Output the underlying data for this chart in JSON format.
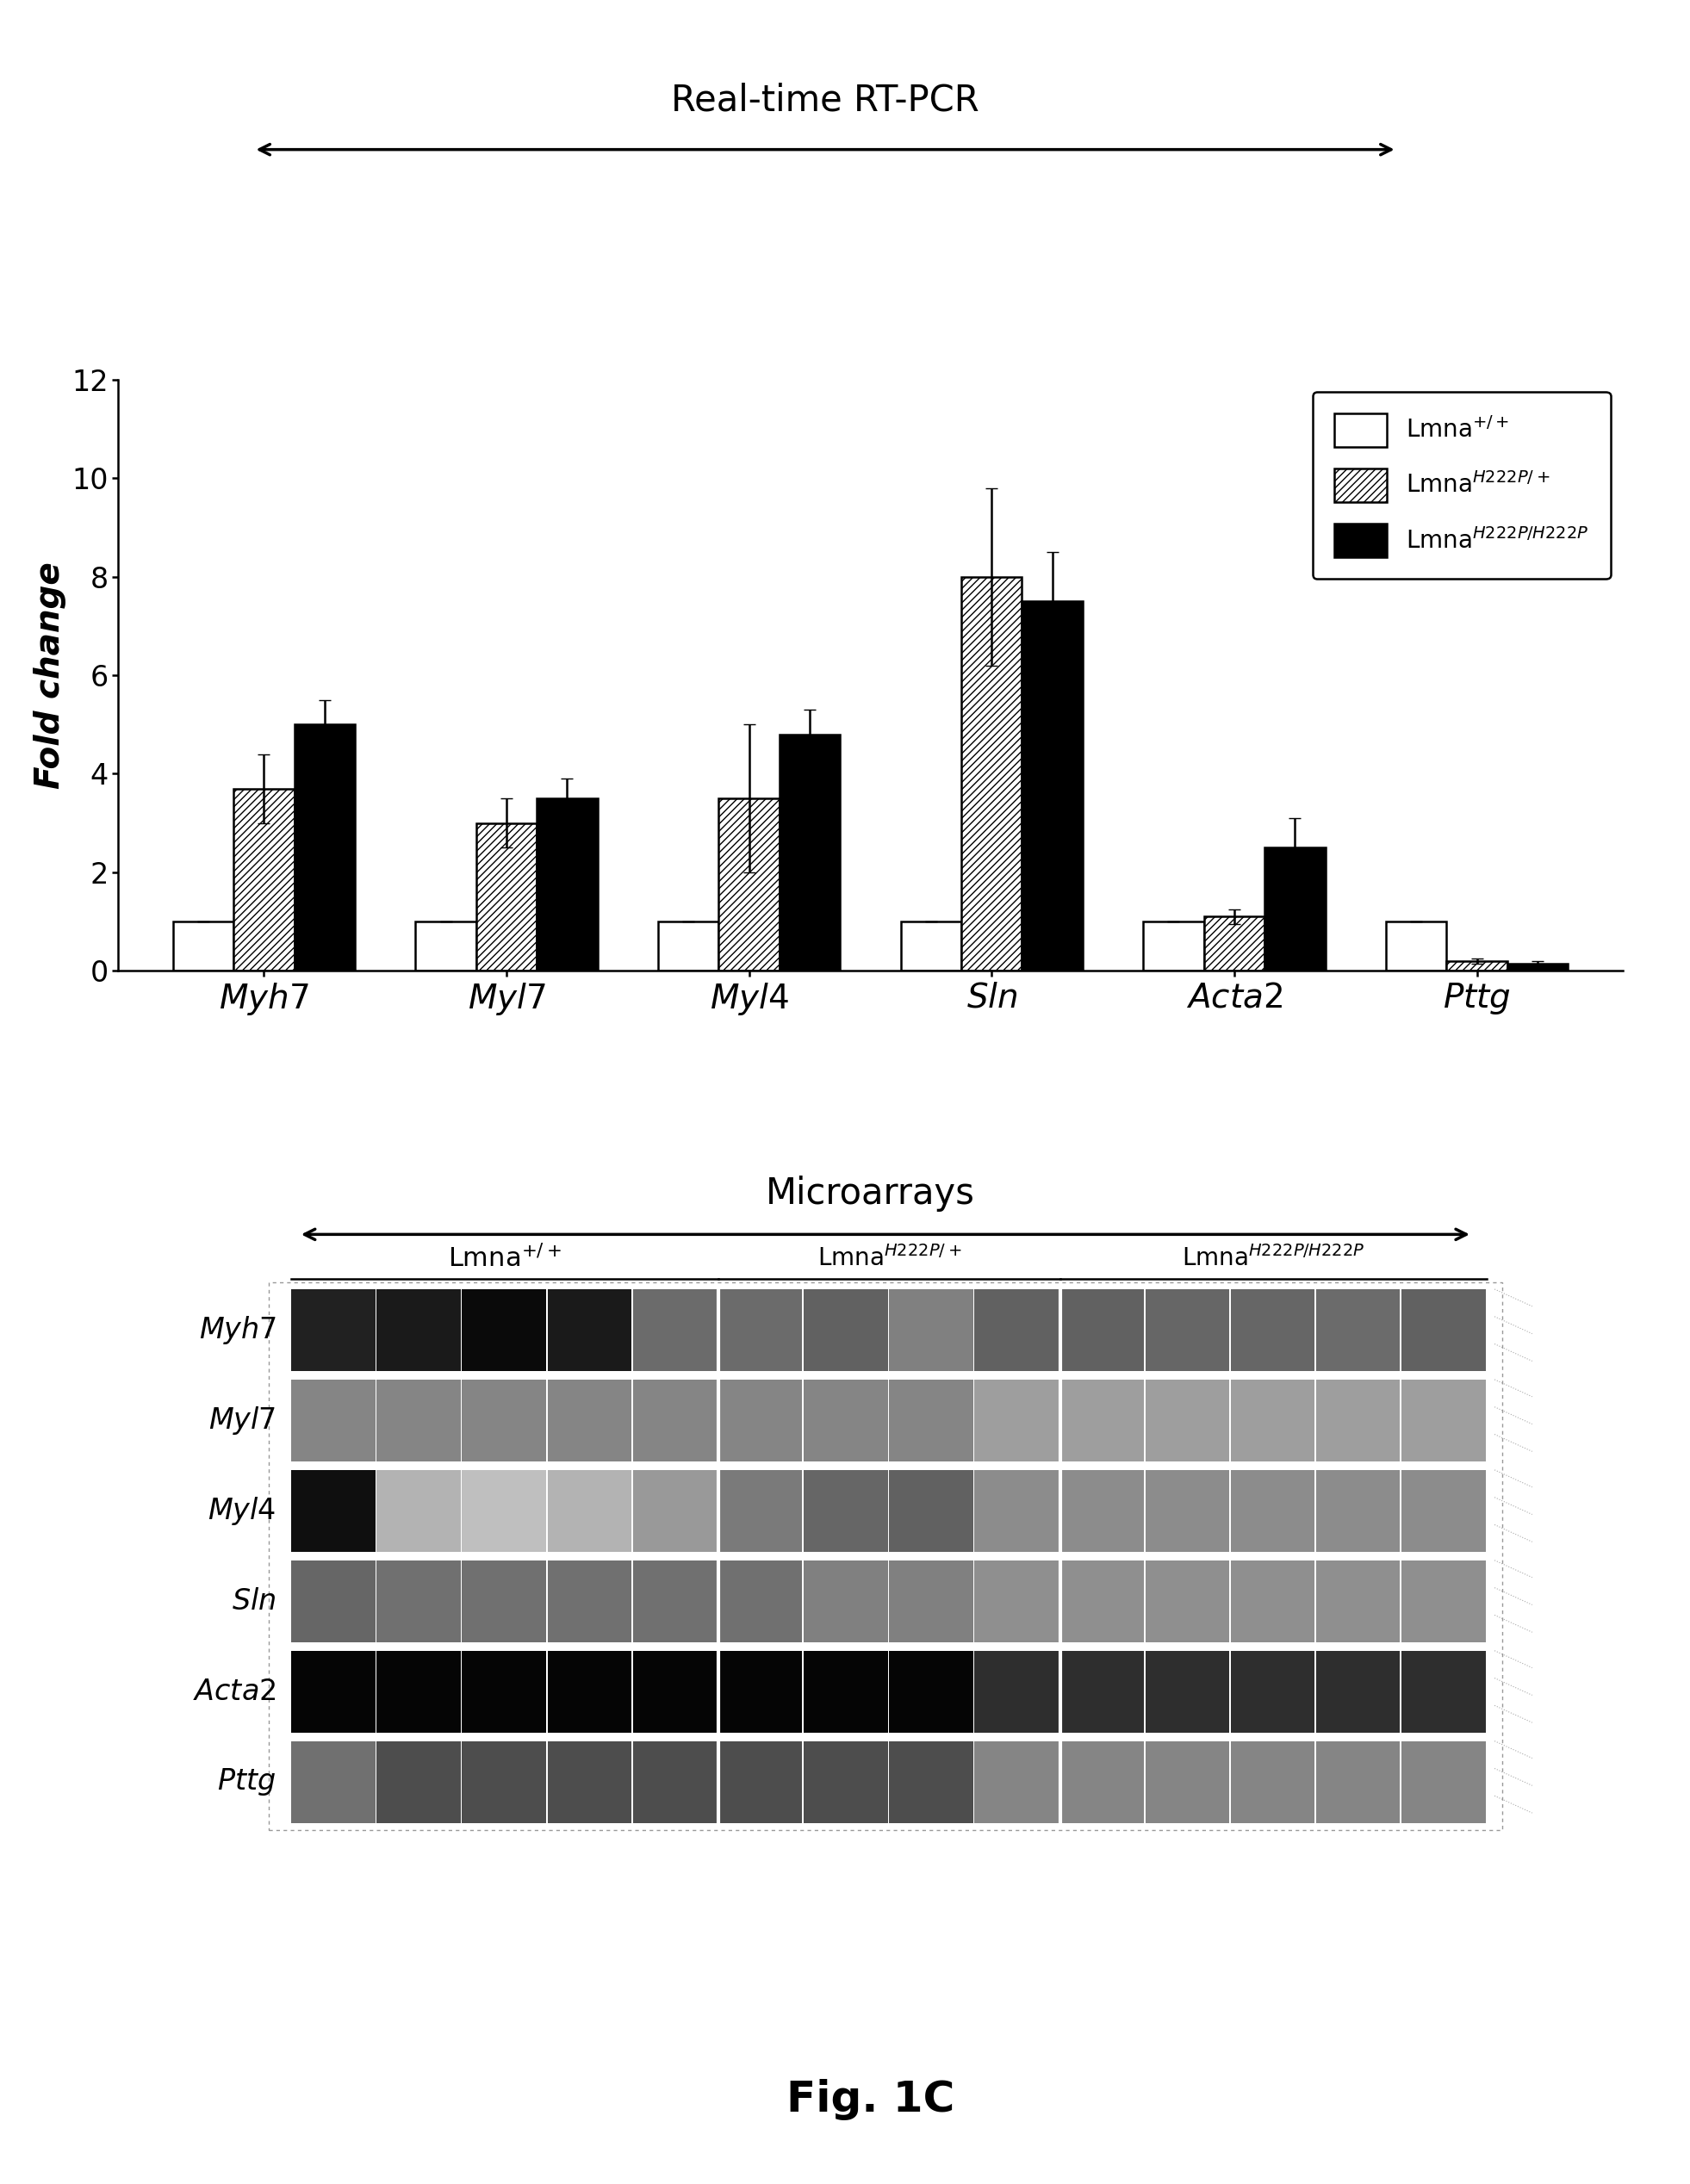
{
  "title_top": "Real-time RT-PCR",
  "title_bottom": "Microarrays",
  "fig_label": "Fig. 1C",
  "genes": [
    "Myh7",
    "Myl7",
    "Myl4",
    "Sln",
    "Acta2",
    "Pttg"
  ],
  "bar_values": {
    "wt": [
      1.0,
      1.0,
      1.0,
      1.0,
      1.0,
      1.0
    ],
    "het": [
      3.7,
      3.0,
      3.5,
      8.0,
      1.1,
      0.2
    ],
    "hom": [
      5.0,
      3.5,
      4.8,
      7.5,
      2.5,
      0.15
    ]
  },
  "bar_errors": {
    "wt": [
      0.0,
      0.0,
      0.0,
      0.0,
      0.0,
      0.0
    ],
    "het": [
      0.7,
      0.5,
      1.5,
      1.8,
      0.15,
      0.05
    ],
    "hom": [
      0.5,
      0.4,
      0.5,
      1.0,
      0.6,
      0.05
    ]
  },
  "ylim": [
    0,
    12
  ],
  "yticks": [
    0,
    2,
    4,
    6,
    8,
    10,
    12
  ],
  "ylabel": "Fold change",
  "bar_width": 0.25,
  "microarray_data": {
    "Myh7": [
      0.13,
      0.1,
      0.04,
      0.1,
      0.42,
      0.42,
      0.38,
      0.5,
      0.38,
      0.38,
      0.4,
      0.4,
      0.42,
      0.38
    ],
    "Myl7": [
      0.52,
      0.52,
      0.52,
      0.52,
      0.52,
      0.52,
      0.52,
      0.52,
      0.62,
      0.62,
      0.62,
      0.62,
      0.62,
      0.62
    ],
    "Myl4": [
      0.06,
      0.7,
      0.75,
      0.7,
      0.6,
      0.48,
      0.4,
      0.38,
      0.55,
      0.55,
      0.55,
      0.55,
      0.55,
      0.55
    ],
    "Sln": [
      0.4,
      0.44,
      0.44,
      0.44,
      0.44,
      0.44,
      0.5,
      0.5,
      0.56,
      0.56,
      0.56,
      0.56,
      0.56,
      0.56
    ],
    "Acta2": [
      0.02,
      0.02,
      0.02,
      0.02,
      0.02,
      0.02,
      0.02,
      0.02,
      0.18,
      0.18,
      0.18,
      0.18,
      0.18,
      0.18
    ],
    "Pttg": [
      0.44,
      0.3,
      0.3,
      0.3,
      0.3,
      0.3,
      0.3,
      0.3,
      0.52,
      0.52,
      0.52,
      0.52,
      0.52,
      0.52
    ]
  },
  "n_cols": 14,
  "wt_cols": 5,
  "het_cols": 4,
  "hom_cols": 5,
  "background_color": "#ffffff"
}
